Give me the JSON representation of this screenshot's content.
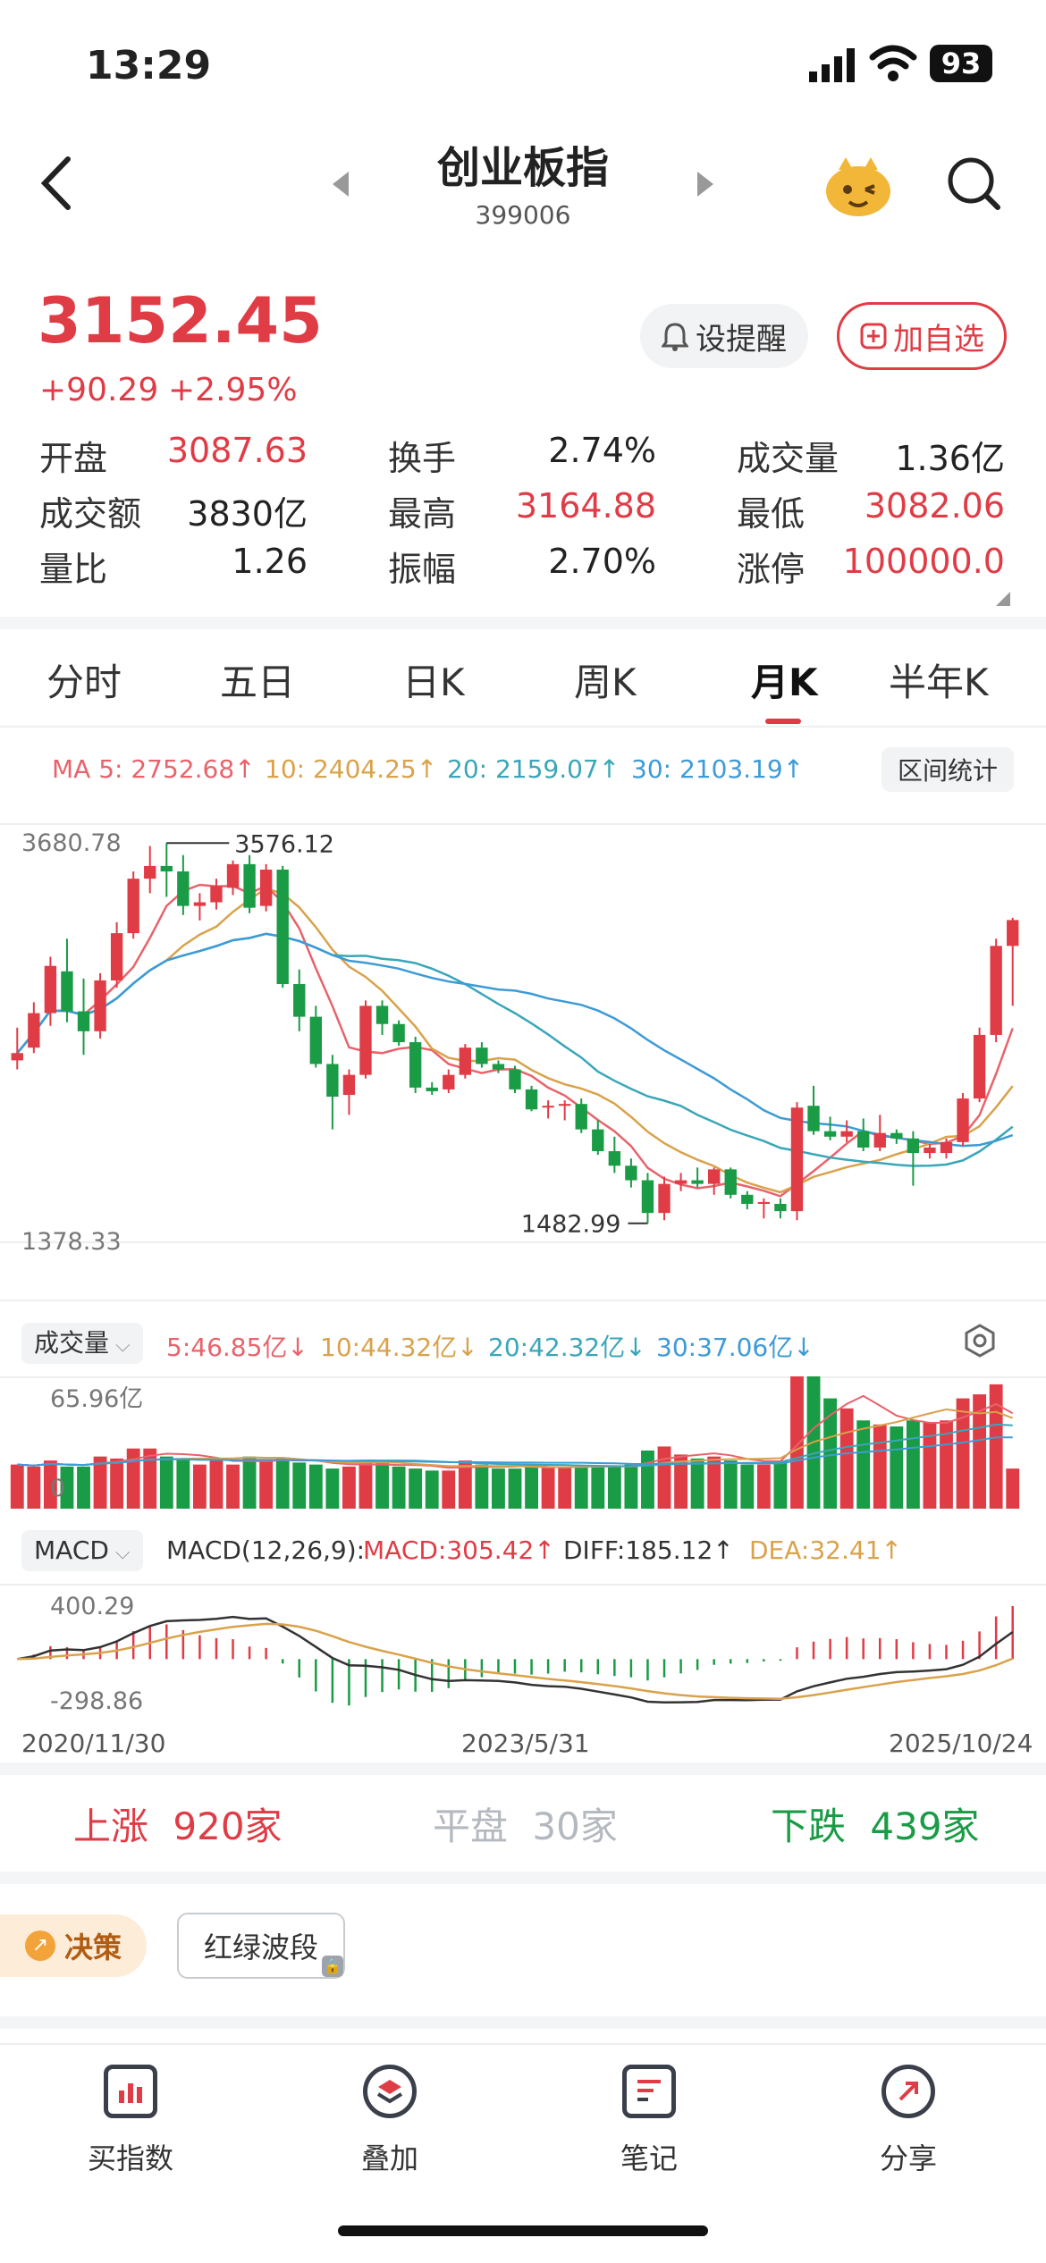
{
  "status_bar": {
    "time": "13:29",
    "battery": "93"
  },
  "header": {
    "title": "创业板指",
    "code": "399006"
  },
  "quote": {
    "price": "3152.45",
    "change": "+90.29",
    "change_pct": "+2.95%",
    "alert_label": "设提醒",
    "add_label": "加自选",
    "stats": [
      {
        "label": "开盘",
        "value": "3087.63",
        "color": "red"
      },
      {
        "label": "换手",
        "value": "2.74%",
        "color": "black"
      },
      {
        "label": "成交量",
        "value": "1.36亿",
        "color": "black"
      },
      {
        "label": "成交额",
        "value": "3830亿",
        "color": "black"
      },
      {
        "label": "最高",
        "value": "3164.88",
        "color": "red"
      },
      {
        "label": "最低",
        "value": "3082.06",
        "color": "red"
      },
      {
        "label": "量比",
        "value": "1.26",
        "color": "black"
      },
      {
        "label": "振幅",
        "value": "2.70%",
        "color": "black"
      },
      {
        "label": "涨停",
        "value": "100000.0",
        "color": "red"
      }
    ]
  },
  "tabs": [
    {
      "label": "分时",
      "active": false
    },
    {
      "label": "五日",
      "active": false
    },
    {
      "label": "日K",
      "active": false
    },
    {
      "label": "周K",
      "active": false
    },
    {
      "label": "月K",
      "active": true
    },
    {
      "label": "半年K",
      "active": false
    }
  ],
  "ma_legend": {
    "ma5": "MA 5: 2752.68↑",
    "ma10": "10: 2404.25↑",
    "ma20": "20: 2159.07↑",
    "ma30": "30: 2103.19↑",
    "stats_button": "区间统计"
  },
  "volume_legend": {
    "selector": "成交量",
    "v5": "5:46.85亿↓",
    "v10": "10:44.32亿↓",
    "v20": "20:42.32亿↓",
    "v30": "30:37.06亿↓"
  },
  "macd_legend": {
    "selector": "MACD",
    "params": "MACD(12,26,9):",
    "macd": "MACD:305.42↑",
    "diff": "DIFF:185.12↑",
    "dea": "DEA:32.41↑"
  },
  "breadth": {
    "up_label": "上涨",
    "up_value": "920家",
    "flat_label": "平盘",
    "flat_value": "30家",
    "down_label": "下跌",
    "down_value": "439家"
  },
  "features": {
    "decision": "决策",
    "wave": "红绿波段"
  },
  "bottom_nav": [
    {
      "label": "买指数",
      "icon": "chart-bars-icon"
    },
    {
      "label": "叠加",
      "icon": "layers-icon"
    },
    {
      "label": "笔记",
      "icon": "note-icon"
    },
    {
      "label": "分享",
      "icon": "share-icon"
    }
  ],
  "colors": {
    "up": "#e03c46",
    "down": "#1a9b45",
    "ma5": "#e8636b",
    "ma10": "#d9a24b",
    "ma20": "#3aa6b9",
    "ma30": "#3d9bd6"
  },
  "chart_data": {
    "type": "candlestick",
    "period": "monthly",
    "x_start": "2020/11/30",
    "x_mid": "2023/5/31",
    "x_end": "2025/10/24",
    "price_axis": {
      "top_label": "3680.78",
      "bottom_label": "1378.33",
      "ylim": [
        1378.33,
        3680.78
      ]
    },
    "annotations": {
      "high": "3576.12",
      "low": "1482.99"
    },
    "candles": [
      {
        "o": 2380,
        "h": 2560,
        "l": 2330,
        "c": 2420
      },
      {
        "o": 2450,
        "h": 2700,
        "l": 2420,
        "c": 2640
      },
      {
        "o": 2640,
        "h": 2950,
        "l": 2570,
        "c": 2900
      },
      {
        "o": 2870,
        "h": 3050,
        "l": 2590,
        "c": 2650
      },
      {
        "o": 2650,
        "h": 2830,
        "l": 2410,
        "c": 2540
      },
      {
        "o": 2540,
        "h": 2860,
        "l": 2500,
        "c": 2820
      },
      {
        "o": 2820,
        "h": 3140,
        "l": 2780,
        "c": 3080
      },
      {
        "o": 3080,
        "h": 3420,
        "l": 3050,
        "c": 3380
      },
      {
        "o": 3380,
        "h": 3560,
        "l": 3300,
        "c": 3450
      },
      {
        "o": 3450,
        "h": 3576,
        "l": 3280,
        "c": 3420
      },
      {
        "o": 3420,
        "h": 3510,
        "l": 3180,
        "c": 3230
      },
      {
        "o": 3230,
        "h": 3300,
        "l": 3150,
        "c": 3250
      },
      {
        "o": 3250,
        "h": 3380,
        "l": 3210,
        "c": 3340
      },
      {
        "o": 3330,
        "h": 3480,
        "l": 3290,
        "c": 3460
      },
      {
        "o": 3460,
        "h": 3510,
        "l": 3190,
        "c": 3220
      },
      {
        "o": 3230,
        "h": 3460,
        "l": 3200,
        "c": 3430
      },
      {
        "o": 3430,
        "h": 3450,
        "l": 2780,
        "c": 2800
      },
      {
        "o": 2800,
        "h": 2880,
        "l": 2540,
        "c": 2620
      },
      {
        "o": 2620,
        "h": 2680,
        "l": 2340,
        "c": 2360
      },
      {
        "o": 2360,
        "h": 2410,
        "l": 2000,
        "c": 2180
      },
      {
        "o": 2190,
        "h": 2330,
        "l": 2080,
        "c": 2300
      },
      {
        "o": 2300,
        "h": 2710,
        "l": 2280,
        "c": 2680
      },
      {
        "o": 2680,
        "h": 2710,
        "l": 2520,
        "c": 2580
      },
      {
        "o": 2580,
        "h": 2600,
        "l": 2460,
        "c": 2480
      },
      {
        "o": 2480,
        "h": 2510,
        "l": 2200,
        "c": 2230
      },
      {
        "o": 2230,
        "h": 2260,
        "l": 2190,
        "c": 2210
      },
      {
        "o": 2220,
        "h": 2330,
        "l": 2200,
        "c": 2300
      },
      {
        "o": 2300,
        "h": 2470,
        "l": 2280,
        "c": 2450
      },
      {
        "o": 2450,
        "h": 2480,
        "l": 2340,
        "c": 2360
      },
      {
        "o": 2360,
        "h": 2380,
        "l": 2310,
        "c": 2330
      },
      {
        "o": 2330,
        "h": 2350,
        "l": 2200,
        "c": 2220
      },
      {
        "o": 2220,
        "h": 2240,
        "l": 2100,
        "c": 2110
      },
      {
        "o": 2120,
        "h": 2160,
        "l": 2060,
        "c": 2130
      },
      {
        "o": 2130,
        "h": 2160,
        "l": 2050,
        "c": 2140
      },
      {
        "o": 2140,
        "h": 2170,
        "l": 1980,
        "c": 2000
      },
      {
        "o": 2000,
        "h": 2050,
        "l": 1860,
        "c": 1880
      },
      {
        "o": 1880,
        "h": 1960,
        "l": 1760,
        "c": 1800
      },
      {
        "o": 1800,
        "h": 1840,
        "l": 1680,
        "c": 1720
      },
      {
        "o": 1720,
        "h": 1760,
        "l": 1482.99,
        "c": 1540
      },
      {
        "o": 1540,
        "h": 1740,
        "l": 1500,
        "c": 1700
      },
      {
        "o": 1700,
        "h": 1760,
        "l": 1660,
        "c": 1720
      },
      {
        "o": 1720,
        "h": 1790,
        "l": 1680,
        "c": 1700
      },
      {
        "o": 1700,
        "h": 1790,
        "l": 1640,
        "c": 1780
      },
      {
        "o": 1780,
        "h": 1790,
        "l": 1620,
        "c": 1640
      },
      {
        "o": 1640,
        "h": 1660,
        "l": 1560,
        "c": 1590
      },
      {
        "o": 1590,
        "h": 1620,
        "l": 1510,
        "c": 1600
      },
      {
        "o": 1590,
        "h": 1620,
        "l": 1510,
        "c": 1550
      },
      {
        "o": 1550,
        "h": 2150,
        "l": 1500,
        "c": 2120
      },
      {
        "o": 2130,
        "h": 2240,
        "l": 1970,
        "c": 1990
      },
      {
        "o": 1990,
        "h": 2070,
        "l": 1940,
        "c": 1960
      },
      {
        "o": 1960,
        "h": 2050,
        "l": 1930,
        "c": 1990
      },
      {
        "o": 1990,
        "h": 2060,
        "l": 1880,
        "c": 1900
      },
      {
        "o": 1900,
        "h": 2080,
        "l": 1880,
        "c": 1980
      },
      {
        "o": 1980,
        "h": 2000,
        "l": 1920,
        "c": 1950
      },
      {
        "o": 1950,
        "h": 1990,
        "l": 1690,
        "c": 1870
      },
      {
        "o": 1870,
        "h": 1920,
        "l": 1840,
        "c": 1900
      },
      {
        "o": 1870,
        "h": 1950,
        "l": 1840,
        "c": 1930
      },
      {
        "o": 1930,
        "h": 2200,
        "l": 1910,
        "c": 2170
      },
      {
        "o": 2170,
        "h": 2560,
        "l": 2150,
        "c": 2520
      },
      {
        "o": 2520,
        "h": 3050,
        "l": 2480,
        "c": 3010
      },
      {
        "o": 3010,
        "h": 3164.88,
        "l": 2680,
        "c": 3152.45
      }
    ],
    "volume_axis": {
      "top_label": "65.96亿",
      "bottom_label": "0",
      "max": 65.96
    },
    "volumes": [
      22,
      21,
      24,
      21,
      21,
      26,
      25,
      30,
      30,
      26,
      25,
      22,
      24,
      22,
      26,
      24,
      25,
      23,
      22,
      20,
      21,
      24,
      23,
      21,
      20,
      19,
      19,
      24,
      22,
      20,
      20,
      21,
      21,
      21,
      21,
      21,
      21,
      22,
      29,
      31,
      27,
      25,
      26,
      24,
      22,
      22,
      24,
      66,
      66,
      55,
      50,
      44,
      42,
      41,
      44,
      43,
      44,
      55,
      57,
      62,
      20
    ],
    "macd_axis": {
      "top_label": "400.29",
      "bottom_label": "-298.86",
      "ylim": [
        -330,
        430
      ]
    }
  }
}
